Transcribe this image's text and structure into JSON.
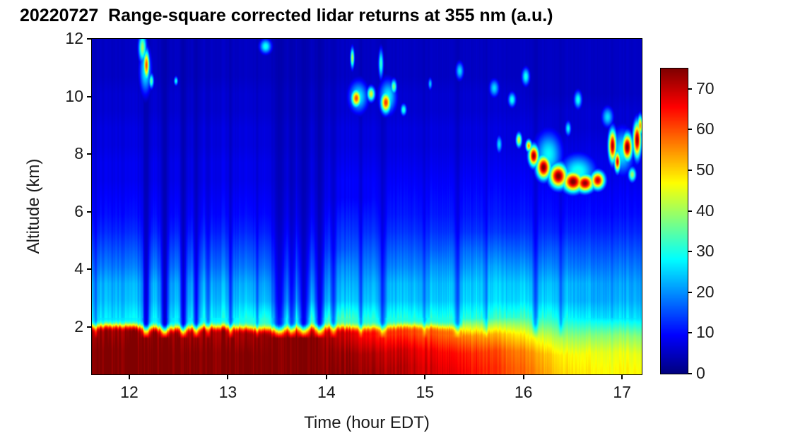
{
  "chart_data": {
    "type": "heatmap",
    "title": "20220727  Range-square corrected lidar returns at 355 nm (a.u.)",
    "xlabel": "Time (hour EDT)",
    "ylabel": "Altitude (km)",
    "xlim": [
      11.62,
      17.2
    ],
    "ylim": [
      0.35,
      12
    ],
    "xticks": [
      12,
      13,
      14,
      15,
      16,
      17
    ],
    "yticks": [
      2,
      4,
      6,
      8,
      10,
      12
    ],
    "colormap": "jet",
    "colorbar": {
      "min": 0,
      "max": 75,
      "ticks": [
        0,
        10,
        20,
        30,
        40,
        50,
        60,
        70
      ]
    },
    "grid": {
      "times": [
        11.625,
        11.875,
        12.125,
        12.375,
        12.625,
        12.875,
        13.125,
        13.375,
        13.625,
        13.875,
        14.125,
        14.375,
        14.625,
        14.875,
        15.125,
        15.375,
        15.625,
        15.875,
        16.125,
        16.375,
        16.625,
        16.875,
        17.125
      ],
      "altitudes": [
        0.5,
        1.1,
        1.7,
        2.3,
        2.9,
        3.5,
        4.1,
        4.7,
        5.3,
        5.9,
        6.5,
        7.1,
        7.7,
        8.3,
        8.9,
        9.5,
        10.1,
        10.7,
        11.3,
        11.9
      ],
      "values": [
        [
          75,
          75,
          75,
          75,
          75,
          75,
          75,
          75,
          75,
          75,
          74,
          73,
          72,
          70,
          68,
          66,
          63,
          60,
          56,
          50,
          48,
          47,
          47
        ],
        [
          75,
          75,
          75,
          75,
          75,
          75,
          75,
          75,
          75,
          75,
          73,
          72,
          70,
          68,
          66,
          64,
          61,
          58,
          54,
          48,
          46,
          45,
          45
        ],
        [
          73,
          73,
          74,
          74,
          73,
          73,
          72,
          74,
          75,
          75,
          70,
          66,
          63,
          61,
          59,
          56,
          53,
          50,
          45,
          40,
          38,
          38,
          38
        ],
        [
          26,
          26,
          27,
          27,
          28,
          28,
          29,
          32,
          36,
          36,
          33,
          31,
          30,
          30,
          30,
          31,
          31,
          33,
          33,
          30,
          27,
          26,
          26
        ],
        [
          23,
          23,
          23,
          23,
          24,
          24,
          24,
          24,
          26,
          26,
          24,
          24,
          24,
          24,
          24,
          25,
          25,
          26,
          26,
          24,
          22,
          22,
          22
        ],
        [
          22,
          22,
          22,
          22,
          22,
          22,
          22,
          22,
          22,
          22,
          22,
          22,
          23,
          23,
          23,
          24,
          24,
          25,
          24,
          23,
          22,
          21,
          21
        ],
        [
          18,
          18,
          18,
          18,
          18,
          18,
          18,
          18,
          18,
          18,
          19,
          19,
          19,
          19,
          20,
          20,
          21,
          21,
          20,
          19,
          18,
          18,
          18
        ],
        [
          15,
          15,
          15,
          15,
          15,
          15,
          15,
          15,
          15,
          15,
          15,
          16,
          16,
          16,
          16,
          17,
          17,
          17,
          16,
          16,
          15,
          15,
          15
        ],
        [
          12,
          12,
          12,
          12,
          12,
          12,
          12,
          12,
          12,
          12,
          13,
          13,
          13,
          13,
          13,
          13,
          13,
          13,
          13,
          12,
          12,
          12,
          12
        ],
        [
          10,
          10,
          10,
          10,
          10,
          10,
          10,
          10,
          10,
          10,
          11,
          11,
          11,
          11,
          11,
          11,
          11,
          11,
          11,
          10,
          10,
          10,
          10
        ],
        [
          9,
          9,
          9,
          9,
          9,
          9,
          9,
          9,
          9,
          9,
          9,
          9,
          10,
          10,
          10,
          10,
          10,
          10,
          10,
          9,
          9,
          9,
          9
        ],
        [
          8,
          8,
          8,
          8,
          8,
          8,
          8,
          8,
          8,
          8,
          9,
          9,
          9,
          9,
          9,
          9,
          9,
          9,
          9,
          8,
          8,
          8,
          8
        ],
        [
          8,
          8,
          8,
          8,
          8,
          8,
          8,
          8,
          8,
          8,
          8,
          8,
          8,
          8,
          8,
          8,
          8,
          8,
          8,
          8,
          8,
          8,
          8
        ],
        [
          7,
          7,
          7,
          7,
          7,
          7,
          7,
          7,
          7,
          7,
          7,
          7,
          7,
          7,
          7,
          7,
          7,
          7,
          7,
          7,
          7,
          7,
          7
        ],
        [
          7,
          7,
          7,
          7,
          7,
          7,
          7,
          7,
          7,
          7,
          7,
          7,
          7,
          7,
          7,
          7,
          7,
          7,
          7,
          6,
          6,
          6,
          6
        ],
        [
          6,
          6,
          6,
          6,
          6,
          6,
          6,
          6,
          6,
          6,
          6,
          6,
          6,
          6,
          6,
          6,
          6,
          6,
          6,
          6,
          6,
          6,
          6
        ],
        [
          6,
          6,
          6,
          6,
          6,
          6,
          6,
          6,
          6,
          6,
          6,
          6,
          6,
          6,
          6,
          6,
          6,
          6,
          5,
          5,
          5,
          5,
          5
        ],
        [
          5,
          5,
          5,
          5,
          5,
          5,
          5,
          5,
          5,
          5,
          5,
          5,
          5,
          5,
          5,
          5,
          5,
          5,
          5,
          5,
          5,
          5,
          5
        ],
        [
          5,
          5,
          5,
          5,
          5,
          5,
          5,
          5,
          5,
          5,
          5,
          5,
          5,
          5,
          5,
          5,
          5,
          5,
          5,
          5,
          5,
          5,
          5
        ],
        [
          5,
          5,
          5,
          5,
          5,
          5,
          5,
          5,
          5,
          5,
          5,
          5,
          5,
          5,
          5,
          5,
          5,
          5,
          5,
          5,
          5,
          5,
          5
        ]
      ]
    },
    "stripes": [
      {
        "t": 11.66,
        "w": 0.015,
        "s": 0.3
      },
      {
        "t": 12.17,
        "w": 0.035,
        "s": 0.85
      },
      {
        "t": 12.36,
        "w": 0.04,
        "s": 0.9
      },
      {
        "t": 12.55,
        "w": 0.035,
        "s": 0.8
      },
      {
        "t": 12.68,
        "w": 0.03,
        "s": 0.7
      },
      {
        "t": 12.8,
        "w": 0.02,
        "s": 0.4
      },
      {
        "t": 13.03,
        "w": 0.025,
        "s": 0.5
      },
      {
        "t": 13.3,
        "w": 0.02,
        "s": 0.35
      },
      {
        "t": 13.52,
        "w": 0.07,
        "s": 0.75
      },
      {
        "t": 13.65,
        "w": 0.05,
        "s": 0.65
      },
      {
        "t": 13.77,
        "w": 0.06,
        "s": 0.85
      },
      {
        "t": 13.93,
        "w": 0.05,
        "s": 0.8
      },
      {
        "t": 14.07,
        "w": 0.03,
        "s": 0.55
      },
      {
        "t": 14.35,
        "w": 0.02,
        "s": 0.4
      },
      {
        "t": 14.57,
        "w": 0.03,
        "s": 0.55
      },
      {
        "t": 15.0,
        "w": 0.02,
        "s": 0.3
      },
      {
        "t": 15.33,
        "w": 0.03,
        "s": 0.45
      },
      {
        "t": 15.62,
        "w": 0.02,
        "s": 0.3
      },
      {
        "t": 16.12,
        "w": 0.03,
        "s": 0.45
      },
      {
        "t": 16.38,
        "w": 0.02,
        "s": 0.35
      }
    ],
    "clouds": [
      {
        "t": 12.13,
        "a": 11.7,
        "rt": 0.04,
        "ra": 0.5,
        "v": 40
      },
      {
        "t": 12.17,
        "a": 11.1,
        "rt": 0.03,
        "ra": 0.5,
        "v": 60
      },
      {
        "t": 12.16,
        "a": 10.9,
        "rt": 0.06,
        "ra": 0.8,
        "v": 28
      },
      {
        "t": 12.22,
        "a": 10.55,
        "rt": 0.025,
        "ra": 0.25,
        "v": 35
      },
      {
        "t": 12.47,
        "a": 10.55,
        "rt": 0.02,
        "ra": 0.15,
        "v": 30
      },
      {
        "t": 13.38,
        "a": 11.75,
        "rt": 0.06,
        "ra": 0.25,
        "v": 30
      },
      {
        "t": 14.26,
        "a": 11.35,
        "rt": 0.02,
        "ra": 0.35,
        "v": 42
      },
      {
        "t": 14.3,
        "a": 9.95,
        "rt": 0.05,
        "ra": 0.3,
        "v": 60
      },
      {
        "t": 14.32,
        "a": 10.0,
        "rt": 0.1,
        "ra": 0.55,
        "v": 28
      },
      {
        "t": 14.45,
        "a": 10.1,
        "rt": 0.04,
        "ra": 0.25,
        "v": 45
      },
      {
        "t": 14.55,
        "a": 11.15,
        "rt": 0.025,
        "ra": 0.5,
        "v": 32
      },
      {
        "t": 14.6,
        "a": 9.8,
        "rt": 0.05,
        "ra": 0.35,
        "v": 62
      },
      {
        "t": 14.62,
        "a": 10.0,
        "rt": 0.09,
        "ra": 0.6,
        "v": 28
      },
      {
        "t": 14.68,
        "a": 10.35,
        "rt": 0.03,
        "ra": 0.25,
        "v": 38
      },
      {
        "t": 14.78,
        "a": 9.55,
        "rt": 0.03,
        "ra": 0.2,
        "v": 32
      },
      {
        "t": 15.05,
        "a": 10.45,
        "rt": 0.02,
        "ra": 0.2,
        "v": 25
      },
      {
        "t": 15.35,
        "a": 10.9,
        "rt": 0.04,
        "ra": 0.3,
        "v": 26
      },
      {
        "t": 15.7,
        "a": 10.3,
        "rt": 0.05,
        "ra": 0.3,
        "v": 26
      },
      {
        "t": 15.75,
        "a": 8.35,
        "rt": 0.03,
        "ra": 0.3,
        "v": 26
      },
      {
        "t": 15.88,
        "a": 9.9,
        "rt": 0.04,
        "ra": 0.25,
        "v": 30
      },
      {
        "t": 15.95,
        "a": 8.5,
        "rt": 0.03,
        "ra": 0.25,
        "v": 45
      },
      {
        "t": 16.02,
        "a": 10.7,
        "rt": 0.04,
        "ra": 0.3,
        "v": 30
      },
      {
        "t": 16.05,
        "a": 8.3,
        "rt": 0.03,
        "ra": 0.2,
        "v": 55
      },
      {
        "t": 16.1,
        "a": 7.95,
        "rt": 0.05,
        "ra": 0.35,
        "v": 74
      },
      {
        "t": 16.2,
        "a": 7.55,
        "rt": 0.07,
        "ra": 0.4,
        "v": 76
      },
      {
        "t": 16.25,
        "a": 8.0,
        "rt": 0.14,
        "ra": 0.8,
        "v": 28
      },
      {
        "t": 16.35,
        "a": 7.25,
        "rt": 0.09,
        "ra": 0.4,
        "v": 76
      },
      {
        "t": 16.5,
        "a": 7.05,
        "rt": 0.1,
        "ra": 0.35,
        "v": 76
      },
      {
        "t": 16.55,
        "a": 7.4,
        "rt": 0.18,
        "ra": 0.6,
        "v": 30
      },
      {
        "t": 16.62,
        "a": 7.0,
        "rt": 0.09,
        "ra": 0.3,
        "v": 74
      },
      {
        "t": 16.75,
        "a": 7.1,
        "rt": 0.07,
        "ra": 0.3,
        "v": 70
      },
      {
        "t": 16.55,
        "a": 9.9,
        "rt": 0.04,
        "ra": 0.3,
        "v": 30
      },
      {
        "t": 16.45,
        "a": 8.9,
        "rt": 0.03,
        "ra": 0.25,
        "v": 28
      },
      {
        "t": 16.85,
        "a": 9.3,
        "rt": 0.06,
        "ra": 0.35,
        "v": 26
      },
      {
        "t": 16.9,
        "a": 8.3,
        "rt": 0.04,
        "ra": 0.55,
        "v": 72
      },
      {
        "t": 16.95,
        "a": 7.75,
        "rt": 0.03,
        "ra": 0.35,
        "v": 68
      },
      {
        "t": 17.0,
        "a": 8.1,
        "rt": 0.12,
        "ra": 0.8,
        "v": 28
      },
      {
        "t": 17.05,
        "a": 8.25,
        "rt": 0.05,
        "ra": 0.45,
        "v": 76
      },
      {
        "t": 17.15,
        "a": 8.5,
        "rt": 0.04,
        "ra": 0.6,
        "v": 74
      },
      {
        "t": 17.18,
        "a": 9.0,
        "rt": 0.025,
        "ra": 0.35,
        "v": 55
      },
      {
        "t": 17.1,
        "a": 7.3,
        "rt": 0.04,
        "ra": 0.25,
        "v": 40
      }
    ]
  }
}
